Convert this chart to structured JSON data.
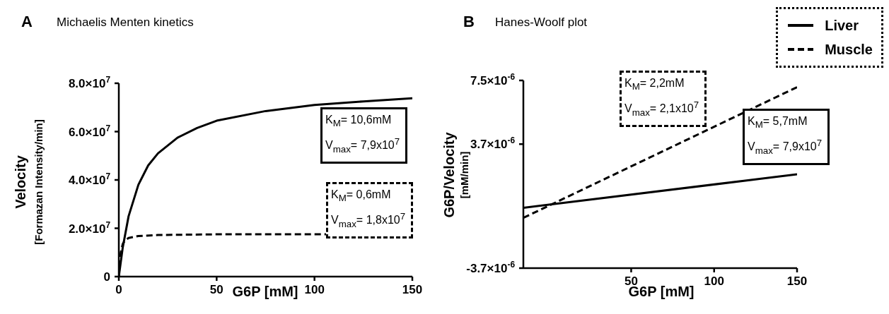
{
  "chart_data": [
    {
      "type": "line",
      "title": "Michaelis Menten kinetics",
      "xlabel": "G6P [mM]",
      "ylabel": "Velocity\n[Formazan Intensity/min]",
      "annotations": [
        "A",
        "K$_{M}$= 10,6mM\nV$_{max}$= 7,9x10$^{7}$",
        "K$_{M}$= 0,6mM\nV$_{max}$= 1,8x10$^{7}$"
      ],
      "series": [
        {
          "color": "#000000",
          "line_style": "solid",
          "x": [
            0,
            2,
            5,
            10,
            15,
            20,
            30,
            40,
            50,
            75,
            100,
            125,
            150
          ],
          "values": [
            0,
            12000000,
            25000000,
            38000000,
            46000000,
            51000000,
            57500000,
            61500000,
            64500000,
            68500000,
            71000000,
            72500000,
            73800000
          ]
        },
        {
          "color": "#000000",
          "line_style": "dashed",
          "x": [
            0,
            0.5,
            1,
            2,
            3,
            5,
            10,
            20,
            50,
            100,
            150
          ],
          "values": [
            0,
            6000000,
            10000000,
            13500000,
            14800000,
            16000000,
            16800000,
            17200000,
            17500000,
            17500000,
            17500000
          ]
        }
      ],
      "xlim": [
        0,
        150
      ],
      "xticks": [
        0,
        50,
        100,
        150
      ],
      "ylim": [
        0,
        80000000
      ],
      "yticks": [
        0,
        {
          "value": 20000000,
          "label": "2.0×10$^{7}$"
        },
        {
          "value": 40000000,
          "label": "4.0×10$^{7}$"
        },
        {
          "value": 60000000,
          "label": "6.0×10$^{7}$"
        },
        {
          "value": 80000000,
          "label": "8.0×10$^{7}$"
        }
      ],
      "grid": false,
      "legend": false
    },
    {
      "type": "line",
      "title": "Hanes-Woolf plot",
      "xlabel": "G6P [mM]",
      "ylabel": "G6P/Velocity\n[mM/min]",
      "annotations": [
        "B",
        "K$_{M}$= 5,7mM\nV$_{max}$= 7,9x10$^{7}$",
        "K$_{M}$= 2,2mM\nV$_{max}$= 2,1x10$^{7}$"
      ],
      "series": [
        {
          "name": "Liver",
          "color": "#000000",
          "line_style": "solid",
          "x": [
            -15,
            150
          ],
          "values": [
            -1e-07,
            1.9e-06
          ]
        },
        {
          "name": "Muscle",
          "color": "#000000",
          "line_style": "dashed",
          "x": [
            -15,
            150
          ],
          "values": [
            -7e-07,
            7.1e-06
          ]
        }
      ],
      "xlim": [
        -15,
        150
      ],
      "xticks": [
        50,
        100,
        150
      ],
      "ylim": [
        -3.7e-06,
        7.5e-06
      ],
      "yticks": [
        {
          "value": -3.7e-06,
          "label": "-3.7×10$^{-6}$"
        },
        {
          "value": 3.7e-06,
          "label": "3.7×10$^{-6}$"
        },
        {
          "value": 7.5e-06,
          "label": "7.5×10$^{-6}$"
        }
      ],
      "grid": false,
      "legend": "top right"
    }
  ]
}
